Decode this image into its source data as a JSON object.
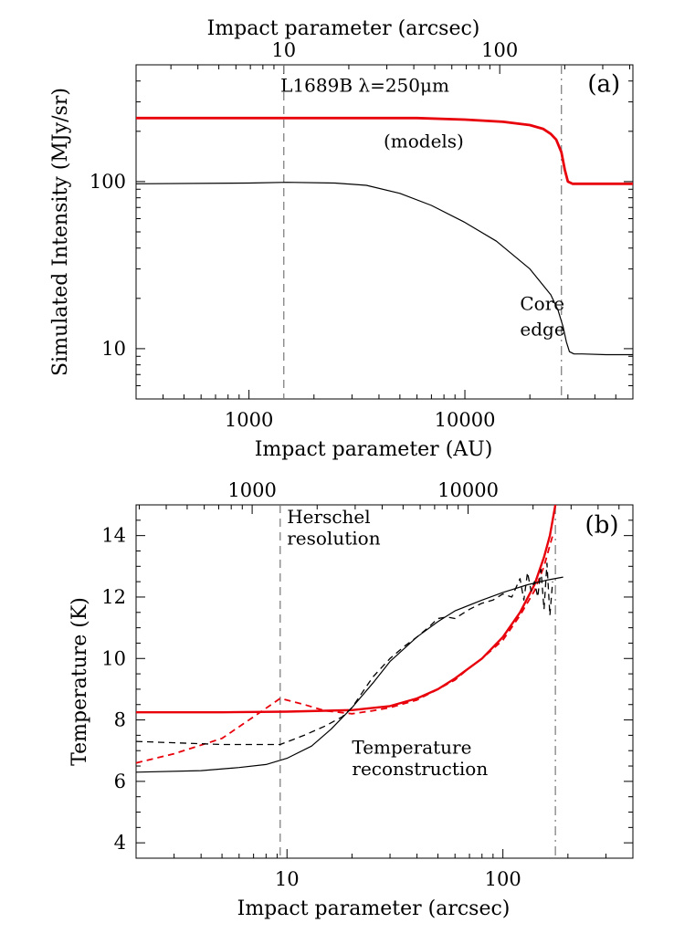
{
  "chart_data": [
    {
      "panel_label": "(a)",
      "type": "line",
      "title": "",
      "xlabel": "Impact parameter (AU)",
      "x2label": "Impact parameter (arcsec)",
      "ylabel": "Simulated Intensity (MJy/sr)",
      "xscale": "log",
      "yscale": "log",
      "xlim": [
        300,
        60000
      ],
      "ylim": [
        5,
        500
      ],
      "xticks": [
        {
          "v": 1000,
          "label": "1000"
        },
        {
          "v": 10000,
          "label": "10000"
        }
      ],
      "x2ticks": [
        {
          "v": 1450,
          "label": "10"
        },
        {
          "v": 14500,
          "label": "100"
        }
      ],
      "yticks": [
        {
          "v": 10,
          "label": "10"
        },
        {
          "v": 100,
          "label": "100"
        }
      ],
      "vlines": [
        {
          "x": 1450,
          "style": "dashed",
          "color": "#777777"
        },
        {
          "x": 28000,
          "style": "dashdot",
          "color": "#777777"
        }
      ],
      "annotations": [
        {
          "text": "L1689B   λ=250μm",
          "x": 1400,
          "y": 345,
          "color": "#555555"
        },
        {
          "text": "(models)",
          "x": 4200,
          "y": 160,
          "color": "#555555"
        },
        {
          "text": "Core",
          "x": 18000,
          "y": 17,
          "color": "#555555"
        },
        {
          "text": "edge",
          "x": 18000,
          "y": 12,
          "color": "#555555"
        },
        {
          "text": "(a)",
          "x": 37000,
          "y": 345,
          "color": "#000000",
          "role": "panel"
        }
      ],
      "series": [
        {
          "color": "#e8000b",
          "width": 2.8,
          "dash": "",
          "x": [
            300,
            1000,
            3000,
            6000,
            10000,
            15000,
            20000,
            23000,
            25000,
            26500,
            28000,
            29000,
            30000,
            31500,
            40000,
            60000
          ],
          "y": [
            240,
            240,
            240,
            240,
            235,
            228,
            218,
            207,
            193,
            178,
            150,
            118,
            100,
            97,
            97,
            97
          ]
        },
        {
          "color": "#000000",
          "width": 1.2,
          "dash": "",
          "x": [
            300,
            1000,
            1500,
            2500,
            3500,
            5000,
            7000,
            10000,
            14000,
            20000,
            25000,
            27000,
            28500,
            29500,
            30500,
            32000,
            35000,
            45000,
            60000
          ],
          "y": [
            97,
            98,
            99,
            98,
            95,
            85,
            72,
            57,
            44,
            30,
            21,
            17,
            13.5,
            11,
            9.6,
            9.3,
            9.3,
            9.2,
            9.2
          ]
        }
      ]
    },
    {
      "panel_label": "(b)",
      "type": "line",
      "title": "",
      "xlabel": "Impact parameter (arcsec)",
      "x2label": "",
      "ylabel": "Temperature (K)",
      "xscale": "log",
      "yscale": "linear",
      "xlim": [
        2,
        400
      ],
      "ylim": [
        3.5,
        15
      ],
      "xticks": [
        {
          "v": 10,
          "label": "10"
        },
        {
          "v": 100,
          "label": "100"
        }
      ],
      "x2ticks": [
        {
          "v": 6.9,
          "label": "1000"
        },
        {
          "v": 69,
          "label": "10000"
        }
      ],
      "yticks": [
        {
          "v": 4,
          "label": "4"
        },
        {
          "v": 6,
          "label": "6"
        },
        {
          "v": 8,
          "label": "8"
        },
        {
          "v": 10,
          "label": "10"
        },
        {
          "v": 12,
          "label": "12"
        },
        {
          "v": 14,
          "label": "14"
        }
      ],
      "vlines": [
        {
          "x": 9.3,
          "style": "dashed",
          "color": "#777777"
        },
        {
          "x": 175,
          "style": "dashdot",
          "color": "#777777"
        }
      ],
      "annotations": [
        {
          "text": "Herschel",
          "x": 10,
          "y": 14.4,
          "color": "#555555"
        },
        {
          "text": "resolution",
          "x": 10,
          "y": 13.7,
          "color": "#555555"
        },
        {
          "text": "Temperature",
          "x": 20,
          "y": 6.9,
          "color": "#333333"
        },
        {
          "text": "reconstruction",
          "x": 20,
          "y": 6.2,
          "color": "#333333"
        },
        {
          "text": "(b)",
          "x": 240,
          "y": 14.1,
          "color": "#000000",
          "role": "panel"
        }
      ],
      "series": [
        {
          "color": "#e8000b",
          "width": 2.4,
          "dash": "",
          "x": [
            2,
            5,
            10,
            20,
            30,
            40,
            50,
            60,
            80,
            100,
            120,
            140,
            155,
            165,
            175
          ],
          "y": [
            8.25,
            8.25,
            8.27,
            8.32,
            8.45,
            8.7,
            9.0,
            9.35,
            10.0,
            10.7,
            11.5,
            12.4,
            13.3,
            14.0,
            15.0
          ]
        },
        {
          "color": "#e8000b",
          "width": 1.8,
          "dash": "7 5",
          "x": [
            2,
            3,
            5,
            7,
            9.3,
            12,
            15,
            20,
            25,
            30,
            40,
            50,
            60,
            70,
            80,
            100,
            120,
            140,
            155,
            170
          ],
          "y": [
            6.6,
            6.9,
            7.4,
            8.1,
            8.7,
            8.5,
            8.3,
            8.2,
            8.3,
            8.4,
            8.65,
            9.0,
            9.3,
            9.7,
            10.0,
            10.6,
            11.4,
            12.2,
            13.0,
            14.0
          ]
        },
        {
          "color": "#000000",
          "width": 1.2,
          "dash": "",
          "x": [
            2,
            4,
            6,
            8,
            10,
            13,
            16,
            20,
            25,
            30,
            40,
            50,
            60,
            80,
            100,
            130,
            160,
            190
          ],
          "y": [
            6.3,
            6.35,
            6.45,
            6.55,
            6.75,
            7.15,
            7.7,
            8.4,
            9.2,
            9.9,
            10.7,
            11.2,
            11.55,
            11.9,
            12.15,
            12.4,
            12.55,
            12.65
          ]
        },
        {
          "color": "#000000",
          "width": 1.3,
          "dash": "7 5",
          "x": [
            2,
            5,
            9.3,
            12,
            15,
            18,
            20,
            25,
            30,
            35,
            40,
            45,
            50,
            55,
            60,
            70,
            80,
            90,
            100,
            110,
            120,
            125,
            130,
            135,
            140,
            145,
            150,
            155,
            160,
            165,
            170
          ],
          "y": [
            7.3,
            7.2,
            7.2,
            7.5,
            7.8,
            8.1,
            8.4,
            9.4,
            10.0,
            10.4,
            10.7,
            11.0,
            11.3,
            11.35,
            11.3,
            11.6,
            11.8,
            11.9,
            12.1,
            12.0,
            12.6,
            11.9,
            12.8,
            12.2,
            12.5,
            12.0,
            12.9,
            11.6,
            13.1,
            11.4,
            12.5
          ]
        }
      ]
    }
  ]
}
